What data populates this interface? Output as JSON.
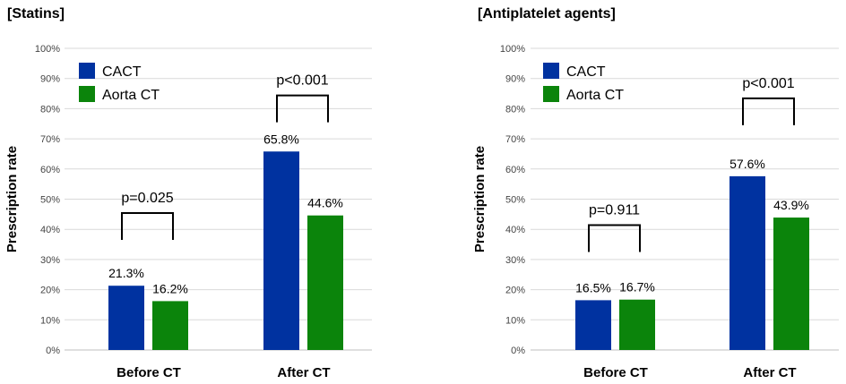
{
  "chart_data": [
    {
      "type": "bar",
      "title": "[Statins]",
      "xlabel": "",
      "ylabel": "Prescription rate",
      "ylim": [
        0,
        100
      ],
      "yticks": [
        "0%",
        "10%",
        "20%",
        "30%",
        "40%",
        "50%",
        "60%",
        "70%",
        "80%",
        "90%",
        "100%"
      ],
      "grid": true,
      "legend_position": "top-left",
      "categories": [
        "Before CT",
        "After CT"
      ],
      "series": [
        {
          "name": "CACT",
          "color": "#0032a0",
          "values": [
            21.3,
            65.8
          ],
          "labels": [
            "21.3%",
            "65.8%"
          ]
        },
        {
          "name": "Aorta CT",
          "color": "#0b840b",
          "values": [
            16.2,
            44.6
          ],
          "labels": [
            "16.2%",
            "44.6%"
          ]
        }
      ],
      "annotations": [
        {
          "category": "Before CT",
          "text": "p=0.025",
          "bracket_at": 36.5
        },
        {
          "category": "After CT",
          "text": "p<0.001",
          "bracket_at": 75.5
        }
      ]
    },
    {
      "type": "bar",
      "title": "[Antiplatelet agents]",
      "xlabel": "",
      "ylabel": "Prescription rate",
      "ylim": [
        0,
        100
      ],
      "yticks": [
        "0%",
        "10%",
        "20%",
        "30%",
        "40%",
        "50%",
        "60%",
        "70%",
        "80%",
        "90%",
        "100%"
      ],
      "grid": true,
      "legend_position": "top-left",
      "categories": [
        "Before CT",
        "After CT"
      ],
      "series": [
        {
          "name": "CACT",
          "color": "#0032a0",
          "values": [
            16.5,
            57.6
          ],
          "labels": [
            "16.5%",
            "57.6%"
          ]
        },
        {
          "name": "Aorta CT",
          "color": "#0b840b",
          "values": [
            16.7,
            43.9
          ],
          "labels": [
            "16.7%",
            "43.9%"
          ]
        }
      ],
      "annotations": [
        {
          "category": "Before CT",
          "text": "p=0.911",
          "bracket_at": 32.5
        },
        {
          "category": "After CT",
          "text": "p<0.001",
          "bracket_at": 74.5
        }
      ]
    }
  ]
}
